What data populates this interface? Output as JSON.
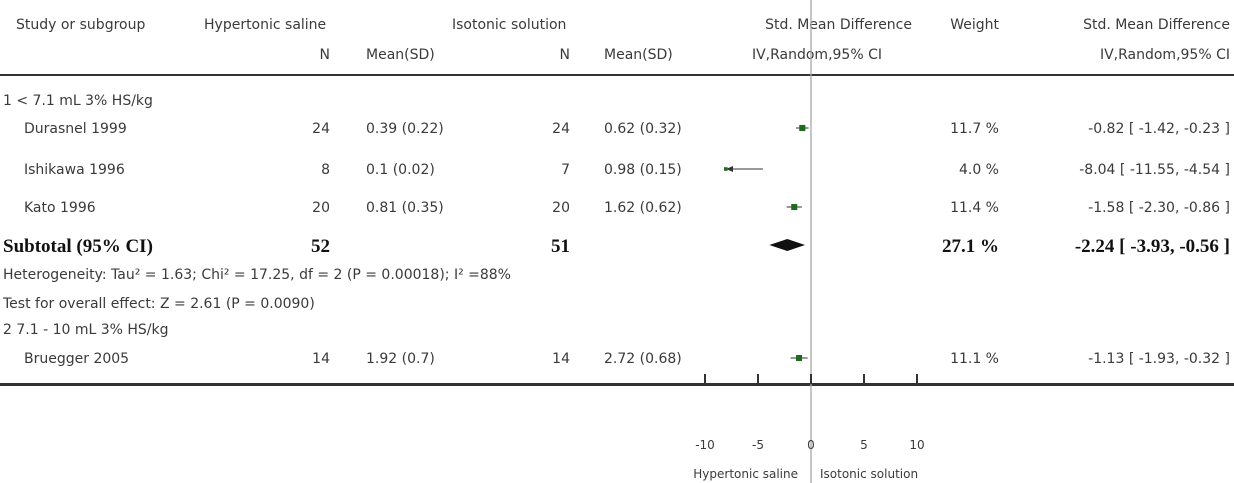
{
  "header": {
    "study": "Study or subgroup",
    "exp_group": "Hypertonic saline",
    "ctrl_group": "Isotonic solution",
    "effect_title": "Std. Mean Difference",
    "weight": "Weight",
    "effect_title_right": "Std. Mean Difference",
    "n": "N",
    "mean_sd": "Mean(SD)",
    "method": "IV,Random,95% CI"
  },
  "subgroups": [
    {
      "label": "1 < 7.1 mL 3% HS/kg",
      "studies": [
        {
          "name": "Durasnel 1999",
          "n1": "24",
          "m1": "0.39 (0.22)",
          "n2": "24",
          "m2": "0.62 (0.32)",
          "weight": "11.7 %",
          "ci": "-0.82 [ -1.42, -0.23 ]"
        },
        {
          "name": "Ishikawa 1996",
          "n1": "8",
          "m1": "0.1 (0.02)",
          "n2": "7",
          "m2": "0.98 (0.15)",
          "weight": "4.0 %",
          "ci": "-8.04 [ -11.55, -4.54 ]"
        },
        {
          "name": "Kato 1996",
          "n1": "20",
          "m1": "0.81 (0.35)",
          "n2": "20",
          "m2": "1.62 (0.62)",
          "weight": "11.4 %",
          "ci": "-1.58 [ -2.30, -0.86 ]"
        }
      ],
      "subtotal": {
        "label": "Subtotal (95% CI)",
        "n1": "52",
        "n2": "51",
        "weight": "27.1 %",
        "ci": "-2.24 [ -3.93, -0.56 ]"
      },
      "heterogeneity": "Heterogeneity: Tau² = 1.63; Chi² = 17.25, df = 2 (P = 0.00018); I² =88%",
      "overall": "Test for overall effect: Z = 2.61 (P = 0.0090)"
    },
    {
      "label": "2 7.1 - 10 mL 3% HS/kg",
      "studies": [
        {
          "name": "Bruegger 2005",
          "n1": "14",
          "m1": "1.92 (0.7)",
          "n2": "14",
          "m2": "2.72 (0.68)",
          "weight": "11.1 %",
          "ci": "-1.13 [ -1.93, -0.32 ]"
        }
      ]
    }
  ],
  "axis": {
    "ticks": [
      "-10",
      "-5",
      "0",
      "5",
      "10"
    ],
    "left_label": "Hypertonic saline",
    "right_label": "Isotonic solution"
  },
  "colors": {
    "marker": "#1e6b1e",
    "text": "#3a3a3a",
    "line": "#333333"
  },
  "chart_data": {
    "type": "forest",
    "xlim": [
      -10,
      10
    ],
    "xticks": [
      -10,
      -5,
      0,
      5,
      10
    ],
    "studies": [
      {
        "name": "Durasnel 1999",
        "est": -0.82,
        "lo": -1.42,
        "hi": -0.23,
        "weight": 11.7
      },
      {
        "name": "Ishikawa 1996",
        "est": -8.04,
        "lo": -11.55,
        "hi": -4.54,
        "weight": 4.0
      },
      {
        "name": "Kato 1996",
        "est": -1.58,
        "lo": -2.3,
        "hi": -0.86,
        "weight": 11.4
      },
      {
        "name": "Bruegger 2005",
        "est": -1.13,
        "lo": -1.93,
        "hi": -0.32,
        "weight": 11.1
      }
    ],
    "subtotals": [
      {
        "name": "Subtotal (95% CI)",
        "est": -2.24,
        "lo": -3.93,
        "hi": -0.56
      }
    ]
  }
}
